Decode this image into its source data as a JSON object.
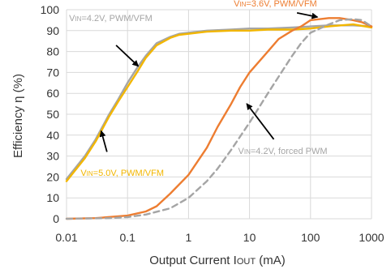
{
  "chart_data": {
    "type": "line",
    "title": "",
    "xlabel": "Output Current I",
    "xlabel_sub": "OUT",
    "xlabel_unit": " (mA)",
    "ylabel": "Efficiency η (%)",
    "xscale": "log",
    "xlim": [
      0.01,
      1000
    ],
    "ylim": [
      0,
      100
    ],
    "xticks": [
      0.01,
      0.1,
      1,
      10,
      100,
      1000
    ],
    "xtick_labels": [
      "0.01",
      "0.1",
      "1",
      "10",
      "100",
      "1000"
    ],
    "yticks": [
      0,
      10,
      20,
      30,
      40,
      50,
      60,
      70,
      80,
      90,
      100
    ],
    "ytick_labels": [
      "0",
      "10",
      "20",
      "30",
      "40",
      "50",
      "60",
      "70",
      "80",
      "90",
      "100"
    ],
    "grid": true,
    "series": [
      {
        "key": "vin42_pwmvfm",
        "color": "#a5a5a5",
        "dash": false,
        "points": [
          [
            0.01,
            19
          ],
          [
            0.02,
            30
          ],
          [
            0.03,
            38
          ],
          [
            0.05,
            50
          ],
          [
            0.07,
            57
          ],
          [
            0.1,
            65
          ],
          [
            0.15,
            73
          ],
          [
            0.2,
            78
          ],
          [
            0.3,
            84
          ],
          [
            0.5,
            87
          ],
          [
            0.7,
            88.5
          ],
          [
            1,
            89
          ],
          [
            2,
            90
          ],
          [
            5,
            90.5
          ],
          [
            10,
            91
          ],
          [
            20,
            91
          ],
          [
            50,
            91.5
          ],
          [
            100,
            92
          ],
          [
            200,
            92.5
          ],
          [
            500,
            92.5
          ],
          [
            1000,
            92
          ]
        ]
      },
      {
        "key": "vin50_pwmvfm",
        "color": "#f2b600",
        "dash": false,
        "points": [
          [
            0.01,
            18
          ],
          [
            0.02,
            29
          ],
          [
            0.03,
            37
          ],
          [
            0.05,
            49
          ],
          [
            0.07,
            56
          ],
          [
            0.1,
            63
          ],
          [
            0.15,
            71
          ],
          [
            0.2,
            77
          ],
          [
            0.3,
            83
          ],
          [
            0.5,
            86.5
          ],
          [
            0.7,
            88
          ],
          [
            1,
            88.5
          ],
          [
            2,
            89.5
          ],
          [
            5,
            90
          ],
          [
            10,
            90
          ],
          [
            20,
            90.5
          ],
          [
            50,
            90.5
          ],
          [
            100,
            91
          ],
          [
            200,
            92
          ],
          [
            500,
            93
          ],
          [
            1000,
            91.5
          ]
        ]
      },
      {
        "key": "vin36_pwmvfm",
        "color": "#ed7d31",
        "dash": false,
        "points": [
          [
            0.01,
            0
          ],
          [
            0.03,
            0.3
          ],
          [
            0.1,
            1.5
          ],
          [
            0.2,
            3.5
          ],
          [
            0.3,
            6
          ],
          [
            0.5,
            12
          ],
          [
            1,
            21
          ],
          [
            2,
            34
          ],
          [
            3,
            44
          ],
          [
            5,
            55
          ],
          [
            7,
            63
          ],
          [
            10,
            70
          ],
          [
            20,
            80
          ],
          [
            30,
            86
          ],
          [
            50,
            90
          ],
          [
            70,
            92
          ],
          [
            100,
            95
          ],
          [
            200,
            96
          ],
          [
            300,
            96
          ],
          [
            500,
            95
          ],
          [
            700,
            94
          ],
          [
            1000,
            92
          ]
        ]
      },
      {
        "key": "vin42_forced",
        "color": "#a5a5a5",
        "dash": true,
        "points": [
          [
            0.01,
            0
          ],
          [
            0.05,
            0.3
          ],
          [
            0.1,
            0.8
          ],
          [
            0.2,
            2
          ],
          [
            0.5,
            5
          ],
          [
            1,
            10
          ],
          [
            2,
            18
          ],
          [
            3,
            24
          ],
          [
            5,
            33
          ],
          [
            10,
            46
          ],
          [
            20,
            60
          ],
          [
            30,
            68
          ],
          [
            50,
            78
          ],
          [
            70,
            84
          ],
          [
            100,
            89
          ],
          [
            200,
            93
          ],
          [
            300,
            95
          ],
          [
            500,
            95.5
          ],
          [
            700,
            95
          ],
          [
            1000,
            92
          ]
        ]
      }
    ],
    "annotations": [
      {
        "key": "vin42_pwmvfm",
        "label": "V",
        "sub": "IN",
        "rest": "=4.2V, PWM/VFM",
        "color": "#a5a5a5",
        "tx": 0.011,
        "ty": 94.5,
        "ax0": 0.065,
        "ay0": 83,
        "ax1": 0.15,
        "ay1": 73
      },
      {
        "key": "vin36_pwmvfm",
        "label": "V",
        "sub": "IN",
        "rest": "=3.6V, PWM/VFM",
        "color": "#ed7d31",
        "tx": 5.5,
        "ty": 101.5,
        "ax0": 60,
        "ay0": 98.5,
        "ax1": 130,
        "ay1": 96.5
      },
      {
        "key": "vin50_pwmvfm",
        "label": "V",
        "sub": "IN",
        "rest": "=5.0V, PWM/VFM",
        "color": "#f2b600",
        "tx": 0.017,
        "ty": 20.5,
        "ax0": 0.046,
        "ay0": 32,
        "ax1": 0.037,
        "ay1": 42
      },
      {
        "key": "vin42_forced",
        "label": "V",
        "sub": "IN",
        "rest": "=4.2V, forced PWM",
        "color": "#a5a5a5",
        "tx": 6.5,
        "ty": 31,
        "ax0": 25,
        "ay0": 38,
        "ax1": 9,
        "ay1": 55
      }
    ]
  }
}
